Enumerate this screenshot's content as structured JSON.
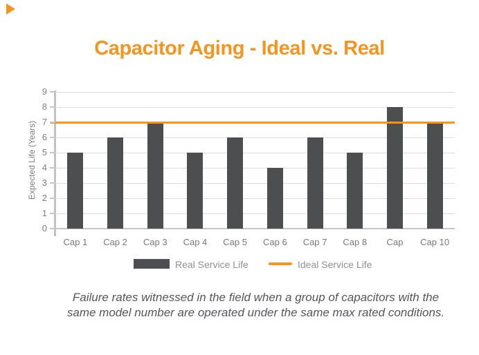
{
  "brand": {
    "accent_orange": "#F7941D",
    "bar_gray": "#4D4E50",
    "text_gray": "#7E8083",
    "caption_gray": "#54565A"
  },
  "decor": {
    "corner_triangle": "orange-triangle"
  },
  "title": {
    "text": "Capacitor Aging - Ideal vs. Real"
  },
  "chart_data": {
    "type": "bar",
    "title": "Capacitor Aging - Ideal vs. Real",
    "categories": [
      "Cap 1",
      "Cap 2",
      "Cap 3",
      "Cap 4",
      "Cap 5",
      "Cap 6",
      "Cap 7",
      "Cap 8",
      "Cap",
      "Cap 10"
    ],
    "series": [
      {
        "name": "Real Service Life",
        "type": "bar",
        "color": "#4D4E50",
        "values": [
          5,
          6,
          7,
          5,
          6,
          4,
          6,
          5,
          8,
          7
        ]
      },
      {
        "name": "Ideal Service Life",
        "type": "line",
        "color": "#F7941D",
        "value": 7
      }
    ],
    "xlabel": "",
    "ylabel": "Expected Life (Years)",
    "ylim": [
      0,
      9
    ],
    "yticks": [
      0,
      1,
      2,
      3,
      4,
      5,
      6,
      7,
      8,
      9
    ],
    "grid": true,
    "legend_position": "bottom"
  },
  "legend": {
    "real_label": "Real Service Life",
    "ideal_label": "Ideal Service Life"
  },
  "caption": {
    "line1": "Failure rates witnessed in the field when a group of capacitors with the",
    "line2": "same model number are operated under the same max rated conditions."
  }
}
